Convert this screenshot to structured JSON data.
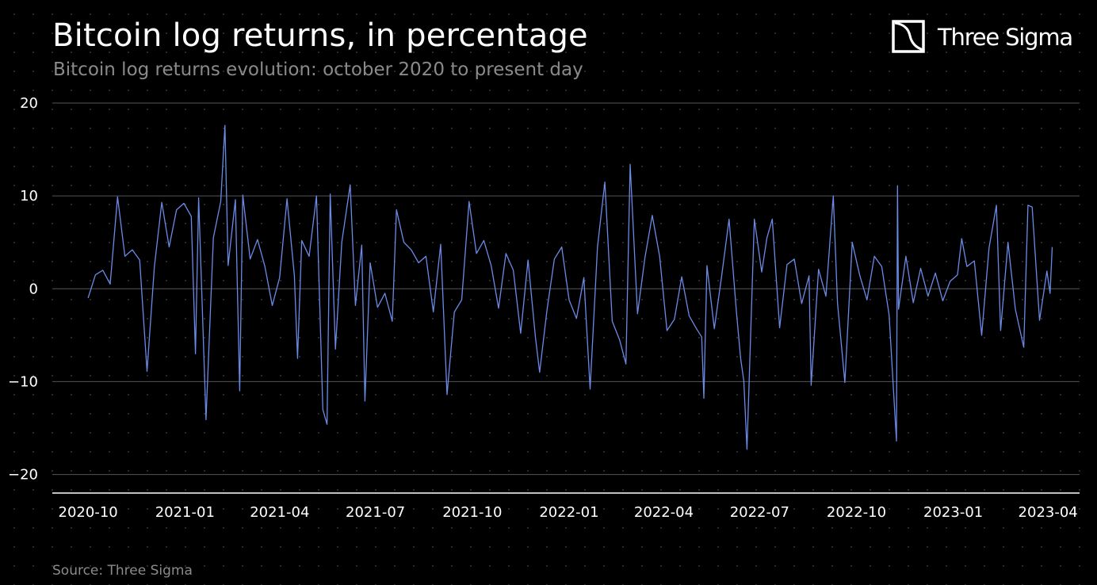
{
  "title": "Bitcoin log returns, in percentage",
  "subtitle": "Bitcoin log returns evolution: october 2020 to present day",
  "source": "Source: Three Sigma",
  "logo": {
    "text": "Three Sigma",
    "icon": "three-sigma-logo-icon"
  },
  "colors": {
    "background": "#000000",
    "line": "#6b8ae6",
    "grid": "#555555",
    "axis": "#ffffff",
    "subtitle": "#8a8a8a"
  },
  "chart_data": {
    "type": "line",
    "title": "Bitcoin log returns, in percentage",
    "subtitle": "Bitcoin log returns evolution: october 2020 to present day",
    "xlabel": "",
    "ylabel": "",
    "ylim": [
      -22,
      20
    ],
    "xlim": [
      "2020-08-28",
      "2023-05-01"
    ],
    "y_ticks": [
      20,
      10,
      0,
      -10,
      -20
    ],
    "y_tick_labels": [
      "20",
      "10",
      "0",
      "−10",
      "−20"
    ],
    "x_ticks": [
      "2020-10-01",
      "2021-01-01",
      "2021-04-01",
      "2021-07-01",
      "2021-10-01",
      "2022-01-01",
      "2022-04-01",
      "2022-07-01",
      "2022-10-01",
      "2023-01-01",
      "2023-04-01"
    ],
    "x_tick_labels": [
      "2020-10",
      "2021-01",
      "2021-04",
      "2021-07",
      "2021-10",
      "2022-01",
      "2022-04",
      "2022-07",
      "2022-10",
      "2023-01",
      "2023-04"
    ],
    "grid": "horizontal",
    "series": [
      {
        "x": [
          "2020-10-01",
          "2020-10-08",
          "2020-10-15",
          "2020-10-22",
          "2020-10-29",
          "2020-11-05",
          "2020-11-12",
          "2020-11-19",
          "2020-11-26",
          "2020-12-03",
          "2020-12-10",
          "2020-12-17",
          "2020-12-24",
          "2020-12-31",
          "2021-01-07",
          "2021-01-11",
          "2021-01-14",
          "2021-01-21",
          "2021-01-28",
          "2021-02-04",
          "2021-02-08",
          "2021-02-11",
          "2021-02-18",
          "2021-02-22",
          "2021-02-25",
          "2021-03-04",
          "2021-03-11",
          "2021-03-18",
          "2021-03-25",
          "2021-04-01",
          "2021-04-08",
          "2021-04-15",
          "2021-04-18",
          "2021-04-22",
          "2021-04-29",
          "2021-05-06",
          "2021-05-12",
          "2021-05-16",
          "2021-05-19",
          "2021-05-24",
          "2021-05-30",
          "2021-06-07",
          "2021-06-12",
          "2021-06-18",
          "2021-06-21",
          "2021-06-26",
          "2021-07-03",
          "2021-07-10",
          "2021-07-17",
          "2021-07-21",
          "2021-07-28",
          "2021-08-04",
          "2021-08-11",
          "2021-08-18",
          "2021-08-25",
          "2021-09-01",
          "2021-09-07",
          "2021-09-14",
          "2021-09-21",
          "2021-09-28",
          "2021-10-05",
          "2021-10-12",
          "2021-10-19",
          "2021-10-26",
          "2021-11-02",
          "2021-11-09",
          "2021-11-16",
          "2021-11-23",
          "2021-11-30",
          "2021-12-04",
          "2021-12-11",
          "2021-12-18",
          "2021-12-25",
          "2022-01-01",
          "2022-01-08",
          "2022-01-15",
          "2022-01-21",
          "2022-01-28",
          "2022-02-04",
          "2022-02-11",
          "2022-02-18",
          "2022-02-24",
          "2022-02-28",
          "2022-03-07",
          "2022-03-14",
          "2022-03-21",
          "2022-03-28",
          "2022-04-04",
          "2022-04-11",
          "2022-04-18",
          "2022-04-25",
          "2022-05-02",
          "2022-05-07",
          "2022-05-09",
          "2022-05-12",
          "2022-05-19",
          "2022-05-26",
          "2022-06-02",
          "2022-06-09",
          "2022-06-13",
          "2022-06-16",
          "2022-06-19",
          "2022-06-26",
          "2022-07-03",
          "2022-07-08",
          "2022-07-13",
          "2022-07-20",
          "2022-07-27",
          "2022-08-03",
          "2022-08-10",
          "2022-08-17",
          "2022-08-19",
          "2022-08-26",
          "2022-09-02",
          "2022-09-09",
          "2022-09-13",
          "2022-09-20",
          "2022-09-27",
          "2022-10-04",
          "2022-10-11",
          "2022-10-18",
          "2022-10-25",
          "2022-11-01",
          "2022-11-08",
          "2022-11-09",
          "2022-11-10",
          "2022-11-17",
          "2022-11-24",
          "2022-12-01",
          "2022-12-08",
          "2022-12-15",
          "2022-12-22",
          "2022-12-29",
          "2023-01-05",
          "2023-01-09",
          "2023-01-14",
          "2023-01-21",
          "2023-01-28",
          "2023-02-04",
          "2023-02-11",
          "2023-02-15",
          "2023-02-22",
          "2023-03-01",
          "2023-03-09",
          "2023-03-13",
          "2023-03-17",
          "2023-03-24",
          "2023-03-31",
          "2023-04-03",
          "2023-04-05"
        ],
        "values": [
          -1,
          1.5,
          2,
          0.5,
          9.9,
          3.5,
          4.2,
          3.1,
          -8.9,
          2.4,
          9.3,
          4.5,
          8.5,
          9.2,
          7.8,
          -7,
          9.8,
          -14.1,
          5.5,
          9.4,
          17.6,
          2.5,
          9.6,
          -11,
          10.1,
          3.2,
          5.3,
          2.4,
          -1.8,
          1.2,
          9.7,
          1.4,
          -7.5,
          5.2,
          3.5,
          10,
          -13,
          -14.6,
          10.2,
          -6.5,
          5,
          11.2,
          -1.8,
          4.7,
          -12.1,
          2.8,
          -2,
          -0.5,
          -3.5,
          8.5,
          5,
          4.2,
          2.8,
          3.5,
          -2.5,
          4.8,
          -11.4,
          -2.5,
          -1.2,
          9.4,
          3.8,
          5.2,
          2.5,
          -2.1,
          3.8,
          2,
          -4.8,
          3.1,
          -5.2,
          -9,
          -2.3,
          3.2,
          4.5,
          -1.2,
          -3.2,
          1.2,
          -10.8,
          4.5,
          11.5,
          -3.5,
          -5.5,
          -8.1,
          13.4,
          -2.7,
          3.3,
          7.9,
          3.5,
          -4.5,
          -3.3,
          1.3,
          -2.9,
          -4.3,
          -5.2,
          -11.8,
          2.5,
          -4.3,
          1.4,
          7.5,
          -2.5,
          -7.5,
          -9.9,
          -17.3,
          7.5,
          1.8,
          5.5,
          7.5,
          -4.2,
          2.6,
          3.2,
          -1.6,
          1.4,
          -10.4,
          2.1,
          -0.8,
          10,
          -1.5,
          -10.1,
          5,
          1.5,
          -1.2,
          3.5,
          2.4,
          -2.8,
          -16.4,
          11.1,
          -2.2,
          3.5,
          -1.5,
          2.2,
          -0.8,
          1.7,
          -1.3,
          0.8,
          1.5,
          5.4,
          2.4,
          3,
          -5,
          4.4,
          9,
          -4.5,
          5,
          -2.2,
          -6.3,
          9,
          8.8,
          -3.4,
          1.9,
          -0.5,
          4.5
        ]
      }
    ]
  }
}
